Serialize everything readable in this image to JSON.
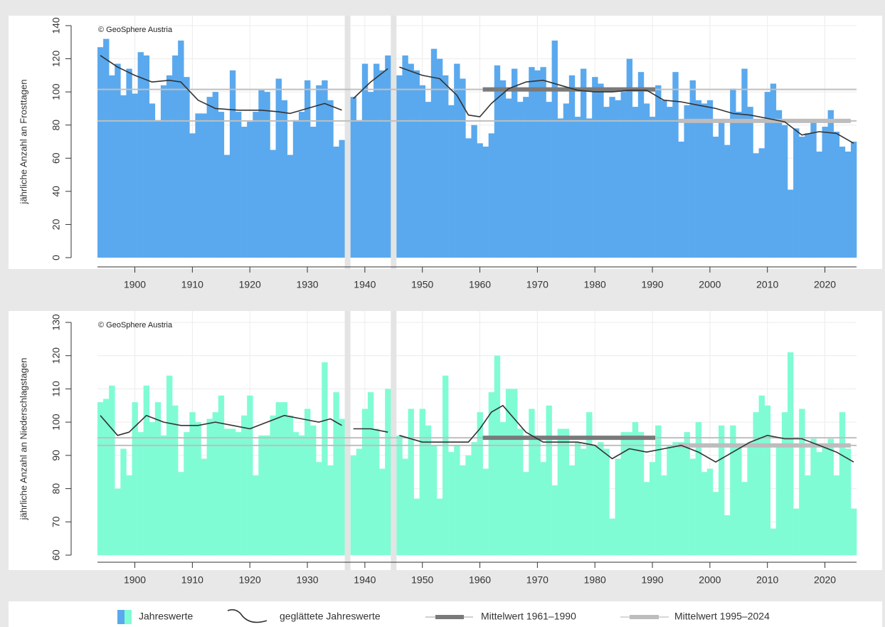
{
  "legend": [
    "Jahreswerte",
    "geglättete Jahreswerte",
    "Mittelwert 1961–1990",
    "Mittelwert 1995–2024"
  ],
  "chart_data": [
    {
      "type": "bar",
      "watermark": "© GeoSphere Austria",
      "ylabel": "jährliche Anzahl an Frosttagen",
      "color": "#5aa9ee",
      "x": [
        1894,
        1895,
        1896,
        1897,
        1898,
        1899,
        1900,
        1901,
        1902,
        1903,
        1904,
        1905,
        1906,
        1907,
        1908,
        1909,
        1910,
        1911,
        1912,
        1913,
        1914,
        1915,
        1916,
        1917,
        1918,
        1919,
        1920,
        1921,
        1922,
        1923,
        1924,
        1925,
        1926,
        1927,
        1928,
        1929,
        1930,
        1931,
        1932,
        1933,
        1934,
        1935,
        1936,
        1937,
        1938,
        1939,
        1940,
        1941,
        1942,
        1943,
        1944,
        1945,
        1946,
        1947,
        1948,
        1949,
        1950,
        1951,
        1952,
        1953,
        1954,
        1955,
        1956,
        1957,
        1958,
        1959,
        1960,
        1961,
        1962,
        1963,
        1964,
        1965,
        1966,
        1967,
        1968,
        1969,
        1970,
        1971,
        1972,
        1973,
        1974,
        1975,
        1976,
        1977,
        1978,
        1979,
        1980,
        1981,
        1982,
        1983,
        1984,
        1985,
        1986,
        1987,
        1988,
        1989,
        1990,
        1991,
        1992,
        1993,
        1994,
        1995,
        1996,
        1997,
        1998,
        1999,
        2000,
        2001,
        2002,
        2003,
        2004,
        2005,
        2006,
        2007,
        2008,
        2009,
        2010,
        2011,
        2012,
        2013,
        2014,
        2015,
        2016,
        2017,
        2018,
        2019,
        2020,
        2021,
        2022,
        2023,
        2024,
        2025
      ],
      "values": [
        127,
        132,
        110,
        117,
        98,
        114,
        99,
        124,
        122,
        93,
        83,
        104,
        110,
        122,
        131,
        109,
        75,
        87,
        87,
        97,
        100,
        88,
        62,
        113,
        88,
        79,
        82,
        88,
        101,
        100,
        65,
        108,
        95,
        62,
        83,
        88,
        107,
        79,
        104,
        107,
        95,
        67,
        71,
        null,
        97,
        83,
        117,
        100,
        117,
        113,
        122,
        null,
        110,
        122,
        117,
        113,
        104,
        94,
        126,
        120,
        110,
        92,
        117,
        108,
        72,
        80,
        69,
        67,
        75,
        116,
        107,
        96,
        114,
        94,
        97,
        115,
        113,
        115,
        94,
        131,
        84,
        93,
        110,
        85,
        114,
        84,
        109,
        105,
        91,
        97,
        95,
        100,
        120,
        91,
        112,
        93,
        85,
        104,
        95,
        91,
        112,
        70,
        92,
        107,
        95,
        93,
        95,
        73,
        82,
        68,
        102,
        88,
        114,
        91,
        63,
        66,
        100,
        105,
        89,
        80,
        41,
        78,
        73,
        75,
        82,
        64,
        79,
        89,
        76,
        67,
        64,
        70
      ],
      "smooth": {
        "x": [
          1894,
          1897,
          1900,
          1903,
          1906,
          1908,
          1911,
          1914,
          1918,
          1922,
          1925,
          1927,
          1930,
          1933,
          1936,
          1937,
          1938,
          1941,
          1944,
          1945,
          1946,
          1950,
          1953,
          1956,
          1958,
          1960,
          1962,
          1965,
          1968,
          1971,
          1974,
          1977,
          1980,
          1983,
          1986,
          1989,
          1992,
          1995,
          1998,
          2001,
          2004,
          2007,
          2010,
          2013,
          2016,
          2019,
          2022,
          2025
        ],
        "values": [
          122,
          115,
          110,
          106,
          107,
          106,
          95,
          90,
          89,
          89,
          88,
          87,
          90,
          93,
          89,
          null,
          96,
          106,
          114,
          null,
          115,
          110,
          108,
          98,
          86,
          85,
          93,
          102,
          106,
          107,
          104,
          101,
          100,
          100,
          101,
          101,
          95,
          94,
          92,
          90,
          87,
          86,
          84,
          82,
          74,
          76,
          75,
          69
        ]
      },
      "means": [
        {
          "value": 101.5,
          "x": [
            1961,
            1990
          ],
          "color": "#7a7a7a"
        },
        {
          "value": 82.5,
          "x": [
            1995,
            2024
          ],
          "color": "#bdbdbd"
        }
      ],
      "xlim": [
        1893.5,
        2025.5
      ],
      "xticks": [
        1900,
        1910,
        1920,
        1930,
        1940,
        1950,
        1960,
        1970,
        1980,
        1990,
        2000,
        2010,
        2020
      ],
      "ylim": [
        0,
        140
      ],
      "yticks": [
        0,
        20,
        40,
        60,
        80,
        100,
        120,
        140
      ],
      "grid": true
    },
    {
      "type": "bar",
      "watermark": "© GeoSphere Austria",
      "ylabel": "jährliche Anzahl an Niederschlagstagen",
      "color": "#80fcd4",
      "x": [
        1894,
        1895,
        1896,
        1897,
        1898,
        1899,
        1900,
        1901,
        1902,
        1903,
        1904,
        1905,
        1906,
        1907,
        1908,
        1909,
        1910,
        1911,
        1912,
        1913,
        1914,
        1915,
        1916,
        1917,
        1918,
        1919,
        1920,
        1921,
        1922,
        1923,
        1924,
        1925,
        1926,
        1927,
        1928,
        1929,
        1930,
        1931,
        1932,
        1933,
        1934,
        1935,
        1936,
        1937,
        1938,
        1939,
        1940,
        1941,
        1942,
        1943,
        1944,
        1945,
        1946,
        1947,
        1948,
        1949,
        1950,
        1951,
        1952,
        1953,
        1954,
        1955,
        1956,
        1957,
        1958,
        1959,
        1960,
        1961,
        1962,
        1963,
        1964,
        1965,
        1966,
        1967,
        1968,
        1969,
        1970,
        1971,
        1972,
        1973,
        1974,
        1975,
        1976,
        1977,
        1978,
        1979,
        1980,
        1981,
        1982,
        1983,
        1984,
        1985,
        1986,
        1987,
        1988,
        1989,
        1990,
        1991,
        1992,
        1993,
        1994,
        1995,
        1996,
        1997,
        1998,
        1999,
        2000,
        2001,
        2002,
        2003,
        2004,
        2005,
        2006,
        2007,
        2008,
        2009,
        2010,
        2011,
        2012,
        2013,
        2014,
        2015,
        2016,
        2017,
        2018,
        2019,
        2020,
        2021,
        2022,
        2023,
        2024,
        2025
      ],
      "values": [
        106,
        107,
        111,
        80,
        92,
        84,
        106,
        97,
        111,
        100,
        106,
        96,
        114,
        105,
        85,
        97,
        103,
        100,
        89,
        101,
        103,
        108,
        98,
        98,
        97,
        102,
        108,
        84,
        96,
        96,
        102,
        106,
        106,
        102,
        97,
        96,
        104,
        99,
        88,
        118,
        87,
        109,
        101,
        null,
        90,
        92,
        104,
        109,
        98,
        86,
        110,
        null,
        96,
        89,
        104,
        77,
        104,
        99,
        93,
        77,
        114,
        91,
        93,
        87,
        90,
        94,
        103,
        86,
        109,
        120,
        100,
        110,
        110,
        98,
        85,
        104,
        95,
        88,
        105,
        81,
        98,
        98,
        87,
        94,
        92,
        103,
        93,
        94,
        92,
        71,
        89,
        97,
        97,
        100,
        97,
        82,
        88,
        99,
        84,
        93,
        94,
        94,
        97,
        89,
        100,
        85,
        86,
        79,
        99,
        72,
        99,
        93,
        82,
        94,
        103,
        108,
        105,
        68,
        93,
        103,
        121,
        74,
        104,
        84,
        95,
        91,
        93,
        95,
        84,
        103,
        92,
        74
      ],
      "smooth": {
        "x": [
          1894,
          1897,
          1899,
          1902,
          1905,
          1908,
          1911,
          1914,
          1917,
          1920,
          1923,
          1926,
          1929,
          1932,
          1934,
          1936,
          1937,
          1938,
          1941,
          1944,
          1945,
          1946,
          1950,
          1955,
          1958,
          1960,
          1962,
          1964,
          1966,
          1968,
          1971,
          1974,
          1977,
          1980,
          1983,
          1986,
          1989,
          1992,
          1995,
          1998,
          2001,
          2004,
          2007,
          2010,
          2013,
          2016,
          2019,
          2022,
          2025
        ],
        "values": [
          102,
          96,
          97,
          102,
          100,
          99,
          99,
          100,
          99,
          98,
          100,
          102,
          101,
          100,
          101,
          99,
          null,
          98,
          98,
          97,
          null,
          96,
          94,
          94,
          94,
          98,
          103,
          105,
          101,
          97,
          94,
          94,
          94,
          93,
          89,
          92,
          91,
          92,
          93,
          91,
          88,
          91,
          94,
          96,
          95,
          95,
          93,
          91,
          88
        ]
      },
      "means": [
        {
          "value": 95.3,
          "x": [
            1961,
            1990
          ],
          "color": "#7a7a7a"
        },
        {
          "value": 93,
          "x": [
            1995,
            2024
          ],
          "color": "#bdbdbd"
        }
      ],
      "xlim": [
        1893.5,
        2025.5
      ],
      "xticks": [
        1900,
        1910,
        1920,
        1930,
        1940,
        1950,
        1960,
        1970,
        1980,
        1990,
        2000,
        2010,
        2020
      ],
      "ylim": [
        60,
        130
      ],
      "yticks": [
        60,
        70,
        80,
        90,
        100,
        110,
        120,
        130
      ],
      "grid": true
    }
  ]
}
